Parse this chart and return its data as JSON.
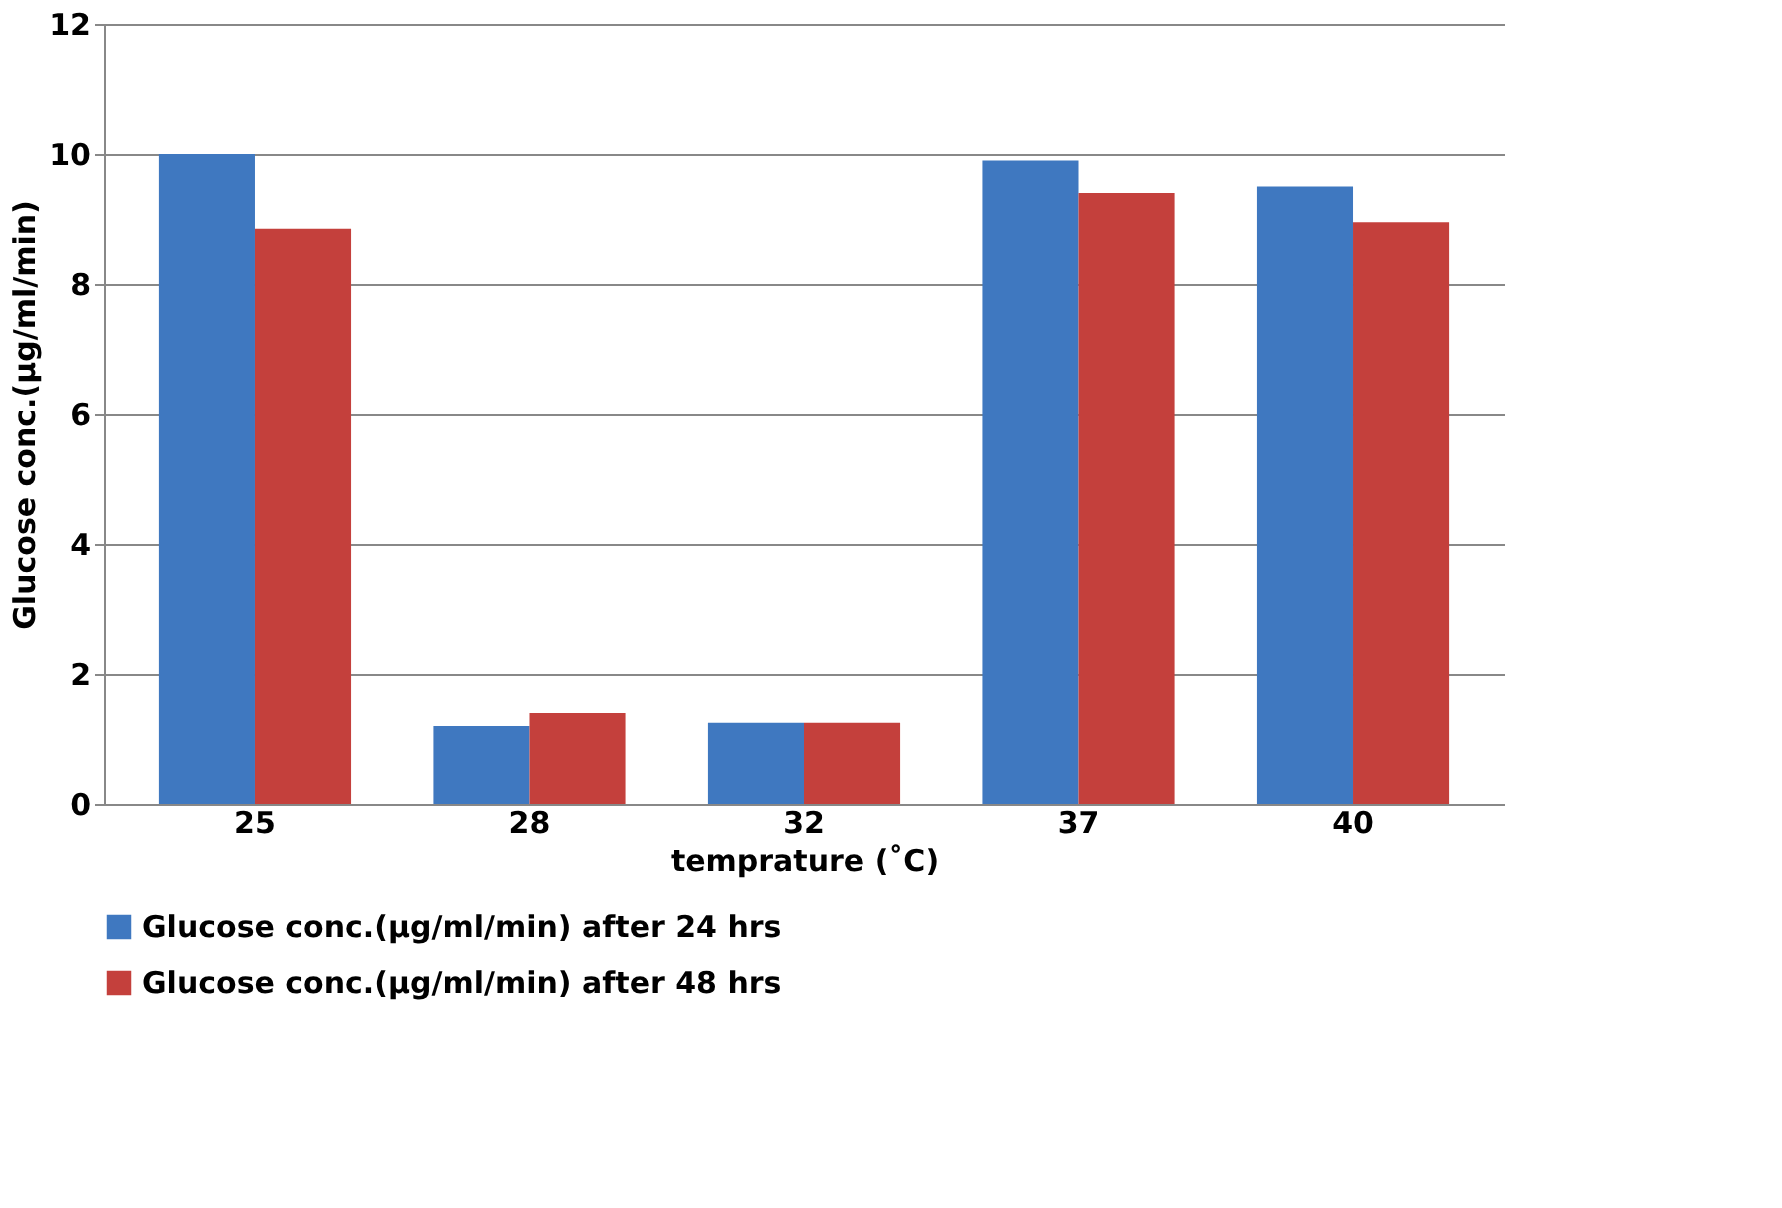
{
  "chart_data": {
    "type": "bar",
    "xlabel": "temprature (˚C)",
    "ylabel": "Glucose conc.(µg/ml/min)",
    "categories": [
      "25",
      "28",
      "32",
      "37",
      "40"
    ],
    "series": [
      {
        "name": "Glucose conc.(µg/ml/min) after 24 hrs",
        "color": "#3f78c0",
        "values": [
          10.0,
          1.2,
          1.25,
          9.9,
          9.5
        ]
      },
      {
        "name": "Glucose conc.(µg/ml/min) after 48 hrs",
        "color": "#c4403c",
        "values": [
          8.85,
          1.4,
          1.25,
          9.4,
          8.95
        ]
      }
    ],
    "ylim": [
      0,
      12
    ],
    "yticks": [
      0,
      2,
      4,
      6,
      8,
      10,
      12
    ],
    "grid": "y",
    "legend": "bottom"
  }
}
